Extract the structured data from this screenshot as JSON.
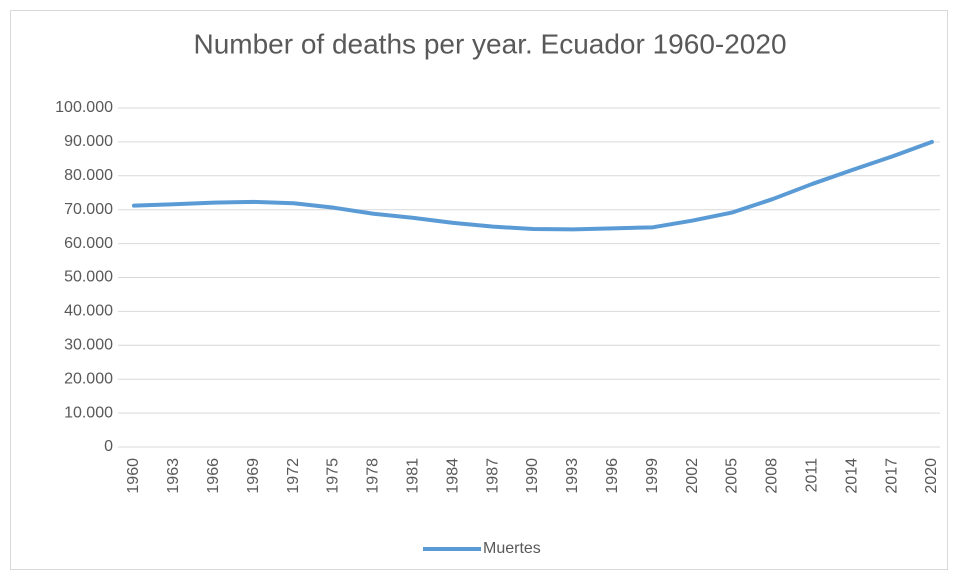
{
  "chart_data": {
    "type": "line",
    "title": "Number of deaths per year. Ecuador 1960-2020",
    "categories": [
      "1960",
      "1963",
      "1966",
      "1969",
      "1972",
      "1975",
      "1978",
      "1981",
      "1984",
      "1987",
      "1990",
      "1993",
      "1996",
      "1999",
      "2002",
      "2005",
      "2008",
      "2011",
      "2014",
      "2017",
      "2020"
    ],
    "series": [
      {
        "name": "Muertes",
        "color": "#5b9bd5",
        "values": [
          71200,
          71600,
          72100,
          72300,
          71900,
          70600,
          68800,
          67600,
          66100,
          65000,
          64300,
          64200,
          64500,
          64800,
          66800,
          69200,
          73100,
          77600,
          81700,
          85700,
          90000
        ]
      }
    ],
    "ylim": [
      0,
      100000
    ],
    "yticks": [
      0,
      {
        "value": 10000,
        "label": "10.000"
      },
      {
        "value": 20000,
        "label": "20.000"
      },
      {
        "value": 30000,
        "label": "30.000"
      },
      {
        "value": 40000,
        "label": "40.000"
      },
      {
        "value": 50000,
        "label": "50.000"
      },
      {
        "value": 60000,
        "label": "60.000"
      },
      {
        "value": 70000,
        "label": "70.000"
      },
      {
        "value": 80000,
        "label": "80.000"
      },
      {
        "value": 90000,
        "label": "90.000"
      },
      {
        "value": 100000,
        "label": "100.000"
      }
    ],
    "grid": true,
    "legend": "bottom"
  }
}
